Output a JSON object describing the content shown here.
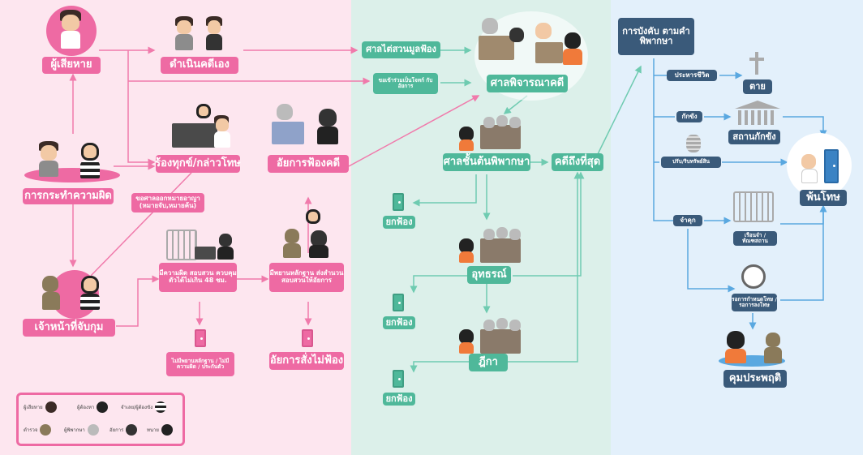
{
  "nodes": {
    "victim": "ผู้เสียหาย",
    "prosecute_self": "ดำเนินคดีเอง",
    "offense": "การกระทำความผิด",
    "complaint": "ร้องทุกข์/กล่าวโทษ",
    "prosecutor_sues": "อัยการฟ้องคดี",
    "arrest_officer": "เจ้าหน้าที่จับกุม",
    "warrant_request": "ขอศาลออกหมายอาญา (หมายจับ,หมายค้น)",
    "evidence_48h": "มีความผิด สอบสวน ควบคุมตัวได้ไม่เกิน 48 ชม.",
    "evidence_to_prosecutor": "มีพยานหลักฐาน ส่งสำนวนสอบสวนให้อัยการ",
    "no_evidence": "ไม่มีพยานหลักฐาน / ไม่มีความผิด / ประกันตัว",
    "prosecutor_no_sue": "อัยการสั่งไม่ฟ้อง",
    "preliminary": "ศาลไต่สวนมูลฟ้อง",
    "joint_plaintiff": "ขอเข้าร่วมเป็นโจทก์ กับอัยการ",
    "trial": "ศาลพิจารณาคดี",
    "first_court": "ศาลชั้นต้นพิพากษา",
    "final": "คดีถึงที่สุด",
    "appeal": "อุทธรณ์",
    "supreme": "ฎีกา",
    "dismiss_1": "ยกฟ้อง",
    "dismiss_2": "ยกฟ้อง",
    "dismiss_3": "ยกฟ้อง",
    "enforcement": "การบังคับ ตามคำพิพากษา",
    "death_penalty": "ประหารชีวิต",
    "death": "ตาย",
    "detention": "กักขัง",
    "detention_place": "สถานกักขัง",
    "fine": "ปรับ/ริบทรัพย์สิน",
    "released": "พ้นโทษ",
    "imprison": "จำคุก",
    "prison": "เรือนจำ /ทัณฑสถาน",
    "suspended": "รอการกำหนดโทษ /รอการลงโทษ",
    "probation": "คุมประพฤติ"
  },
  "legend": {
    "victim": "ผู้เสียหาย",
    "accused": "ผู้ต้องหา",
    "defendant": "จำเลย/ผู้ต้องขัง",
    "police": "ตำรวจ",
    "judge": "ผู้พิพากษา",
    "prosecutor": "อัยการ",
    "lawyer": "ทนาย"
  },
  "colors": {
    "pink": "#ee6aa3",
    "teal": "#4fb89a",
    "navy": "#3a5a7a",
    "line_pink": "#f07aab",
    "line_teal": "#6fcbb1",
    "line_blue": "#5aa8e0"
  }
}
